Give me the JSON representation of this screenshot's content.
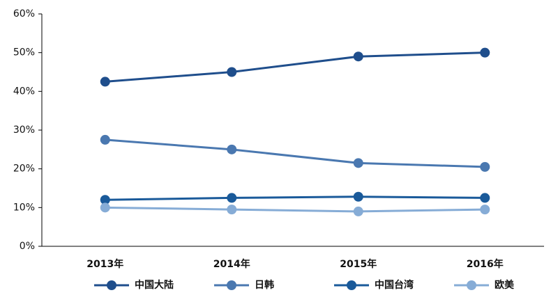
{
  "chart_data": {
    "type": "line",
    "categories": [
      "2013年",
      "2014年",
      "2015年",
      "2016年"
    ],
    "series": [
      {
        "name": "中国大陆",
        "color": "#1f4e8c",
        "values": [
          42.5,
          45,
          49,
          50
        ]
      },
      {
        "name": "日韩",
        "color": "#4a78b0",
        "values": [
          27.5,
          25,
          21.5,
          20.5
        ]
      },
      {
        "name": "中国台湾",
        "color": "#1a5a9a",
        "values": [
          12,
          12.5,
          12.8,
          12.5
        ]
      },
      {
        "name": "欧美",
        "color": "#86acd6",
        "values": [
          10,
          9.5,
          9,
          9.5
        ]
      }
    ],
    "ylim": [
      0,
      60
    ],
    "yticks": [
      {
        "value": 0,
        "label": "0%"
      },
      {
        "value": 10,
        "label": "10%"
      },
      {
        "value": 20,
        "label": "20%"
      },
      {
        "value": 30,
        "label": "30%"
      },
      {
        "value": 40,
        "label": "40%"
      },
      {
        "value": 50,
        "label": "50%"
      },
      {
        "value": 60,
        "label": "60%"
      }
    ],
    "grid": false,
    "legend": "bottom"
  }
}
